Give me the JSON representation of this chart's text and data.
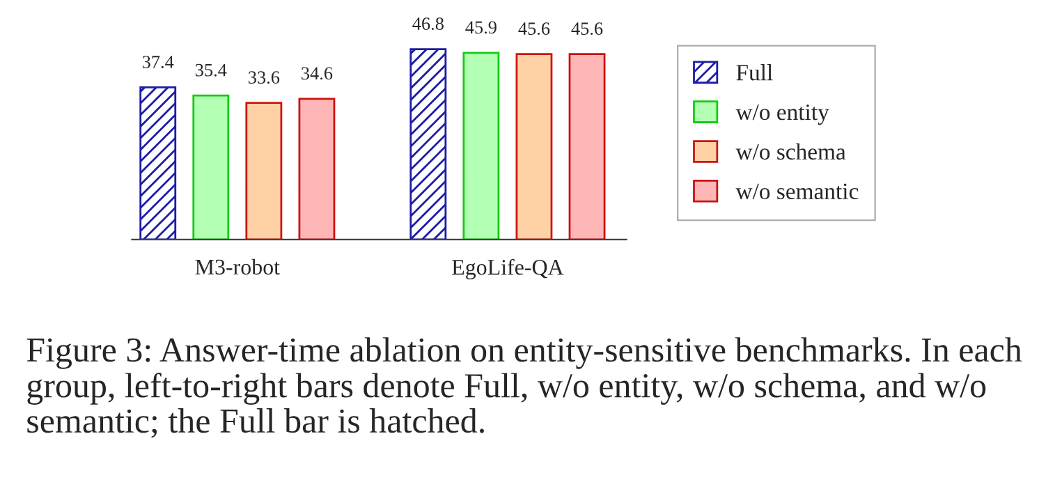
{
  "chart_data": {
    "type": "bar",
    "categories": [
      "M3-robot",
      "EgoLife-QA"
    ],
    "tick_labels": "x",
    "data_labels": true,
    "legend": "right",
    "series": [
      {
        "name": "Full",
        "color": "#1c1ca8",
        "values": [
          37.4,
          46.8
        ]
      },
      {
        "name": "w/o entity",
        "color": "#b3ffb3",
        "values": [
          35.4,
          45.9
        ]
      },
      {
        "name": "w/o schema",
        "color": "#ffd2a6",
        "values": [
          33.6,
          45.6
        ]
      },
      {
        "name": "w/o semantic",
        "color": "#ffb6b6",
        "values": [
          34.6,
          45.6
        ]
      }
    ],
    "annotations": [
      "Figure 3: Answer-time ablation on entity-sensitive benchmarks. In each group, left-to-right bars denote Full, w/o entity, w/o schema, and w/o semantic; the Full bar is hatched."
    ]
  }
}
